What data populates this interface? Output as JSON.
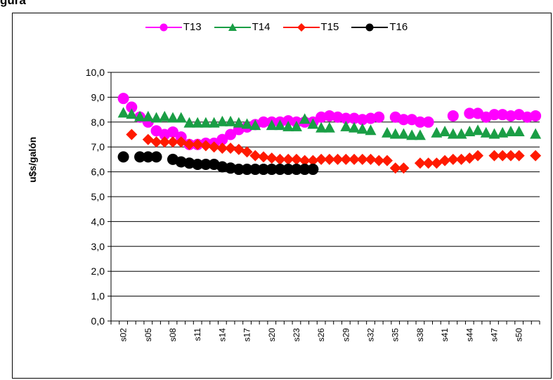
{
  "header": {
    "title_fragment": "gura"
  },
  "chart_data": {
    "type": "scatter",
    "title": "",
    "ylabel": "u$s/galón",
    "xlabel": "",
    "ylim": [
      0,
      10
    ],
    "yticks": [
      "0,0",
      "1,0",
      "2,0",
      "3,0",
      "4,0",
      "5,0",
      "6,0",
      "7,0",
      "8,0",
      "9,0",
      "10,0"
    ],
    "xticks": [
      "s02",
      "s05",
      "s08",
      "s11",
      "s14",
      "s17",
      "s20",
      "s23",
      "s26",
      "s29",
      "s32",
      "s35",
      "s38",
      "s41",
      "s44",
      "s47",
      "s50"
    ],
    "legend_position": "top-center",
    "grid": true,
    "series": [
      {
        "name": "T13",
        "color": "#ff00ff",
        "marker": "circle",
        "points": [
          [
            2,
            8.95
          ],
          [
            3,
            8.6
          ],
          [
            4,
            8.2
          ],
          [
            5,
            8.0
          ],
          [
            6,
            7.65
          ],
          [
            7,
            7.5
          ],
          [
            8,
            7.6
          ],
          [
            9,
            7.4
          ],
          [
            10,
            7.1
          ],
          [
            11,
            7.1
          ],
          [
            12,
            7.15
          ],
          [
            13,
            7.15
          ],
          [
            14,
            7.3
          ],
          [
            15,
            7.5
          ],
          [
            16,
            7.7
          ],
          [
            17,
            7.8
          ],
          [
            18,
            7.9
          ],
          [
            19,
            8.0
          ],
          [
            20,
            8.0
          ],
          [
            21,
            8.0
          ],
          [
            22,
            8.05
          ],
          [
            23,
            8.0
          ],
          [
            24,
            8.0
          ],
          [
            25,
            8.0
          ],
          [
            26,
            8.2
          ],
          [
            27,
            8.25
          ],
          [
            28,
            8.2
          ],
          [
            29,
            8.15
          ],
          [
            30,
            8.15
          ],
          [
            31,
            8.1
          ],
          [
            32,
            8.15
          ],
          [
            33,
            8.2
          ],
          [
            35,
            8.2
          ],
          [
            36,
            8.1
          ],
          [
            37,
            8.1
          ],
          [
            38,
            8.0
          ],
          [
            39,
            8.0
          ],
          [
            42,
            8.25
          ],
          [
            44,
            8.35
          ],
          [
            45,
            8.35
          ],
          [
            46,
            8.2
          ],
          [
            47,
            8.3
          ],
          [
            48,
            8.3
          ],
          [
            49,
            8.25
          ],
          [
            50,
            8.3
          ],
          [
            51,
            8.2
          ],
          [
            52,
            8.25
          ]
        ]
      },
      {
        "name": "T14",
        "color": "#1a9e45",
        "marker": "triangle",
        "points": [
          [
            2,
            8.35
          ],
          [
            3,
            8.3
          ],
          [
            4,
            8.2
          ],
          [
            5,
            8.2
          ],
          [
            6,
            8.15
          ],
          [
            7,
            8.2
          ],
          [
            8,
            8.15
          ],
          [
            9,
            8.15
          ],
          [
            10,
            7.95
          ],
          [
            11,
            7.95
          ],
          [
            12,
            7.95
          ],
          [
            13,
            7.95
          ],
          [
            14,
            8.0
          ],
          [
            15,
            8.0
          ],
          [
            16,
            7.95
          ],
          [
            17,
            7.9
          ],
          [
            18,
            7.85
          ],
          [
            20,
            7.85
          ],
          [
            21,
            7.85
          ],
          [
            22,
            7.8
          ],
          [
            23,
            7.8
          ],
          [
            24,
            8.1
          ],
          [
            25,
            7.9
          ],
          [
            26,
            7.75
          ],
          [
            27,
            7.75
          ],
          [
            29,
            7.8
          ],
          [
            30,
            7.75
          ],
          [
            31,
            7.7
          ],
          [
            32,
            7.65
          ],
          [
            34,
            7.55
          ],
          [
            35,
            7.5
          ],
          [
            36,
            7.5
          ],
          [
            37,
            7.45
          ],
          [
            38,
            7.45
          ],
          [
            40,
            7.55
          ],
          [
            41,
            7.6
          ],
          [
            42,
            7.5
          ],
          [
            43,
            7.5
          ],
          [
            44,
            7.6
          ],
          [
            45,
            7.65
          ],
          [
            46,
            7.55
          ],
          [
            47,
            7.5
          ],
          [
            48,
            7.55
          ],
          [
            49,
            7.6
          ],
          [
            50,
            7.6
          ],
          [
            52,
            7.5
          ]
        ]
      },
      {
        "name": "T15",
        "color": "#ff1a00",
        "marker": "diamond",
        "points": [
          [
            3,
            7.5
          ],
          [
            5,
            7.3
          ],
          [
            6,
            7.2
          ],
          [
            7,
            7.2
          ],
          [
            8,
            7.2
          ],
          [
            9,
            7.2
          ],
          [
            10,
            7.1
          ],
          [
            11,
            7.1
          ],
          [
            12,
            7.05
          ],
          [
            13,
            7.0
          ],
          [
            14,
            6.95
          ],
          [
            15,
            6.95
          ],
          [
            16,
            6.9
          ],
          [
            17,
            6.8
          ],
          [
            18,
            6.65
          ],
          [
            19,
            6.6
          ],
          [
            20,
            6.55
          ],
          [
            21,
            6.5
          ],
          [
            22,
            6.5
          ],
          [
            23,
            6.5
          ],
          [
            24,
            6.45
          ],
          [
            25,
            6.45
          ],
          [
            26,
            6.5
          ],
          [
            27,
            6.5
          ],
          [
            28,
            6.5
          ],
          [
            29,
            6.5
          ],
          [
            30,
            6.5
          ],
          [
            31,
            6.5
          ],
          [
            32,
            6.5
          ],
          [
            33,
            6.45
          ],
          [
            34,
            6.45
          ],
          [
            35,
            6.15
          ],
          [
            36,
            6.15
          ],
          [
            38,
            6.35
          ],
          [
            39,
            6.35
          ],
          [
            40,
            6.35
          ],
          [
            41,
            6.45
          ],
          [
            42,
            6.5
          ],
          [
            43,
            6.5
          ],
          [
            44,
            6.55
          ],
          [
            45,
            6.65
          ],
          [
            47,
            6.65
          ],
          [
            48,
            6.65
          ],
          [
            49,
            6.65
          ],
          [
            50,
            6.65
          ],
          [
            52,
            6.65
          ]
        ]
      },
      {
        "name": "T16",
        "color": "#000000",
        "marker": "circle",
        "points": [
          [
            2,
            6.6
          ],
          [
            4,
            6.6
          ],
          [
            5,
            6.6
          ],
          [
            6,
            6.6
          ],
          [
            8,
            6.5
          ],
          [
            9,
            6.4
          ],
          [
            10,
            6.35
          ],
          [
            11,
            6.3
          ],
          [
            12,
            6.3
          ],
          [
            13,
            6.3
          ],
          [
            14,
            6.2
          ],
          [
            15,
            6.15
          ],
          [
            16,
            6.1
          ],
          [
            17,
            6.1
          ],
          [
            18,
            6.1
          ],
          [
            19,
            6.1
          ],
          [
            20,
            6.1
          ],
          [
            21,
            6.1
          ],
          [
            22,
            6.1
          ],
          [
            23,
            6.1
          ],
          [
            24,
            6.1
          ],
          [
            25,
            6.1
          ]
        ]
      }
    ]
  }
}
